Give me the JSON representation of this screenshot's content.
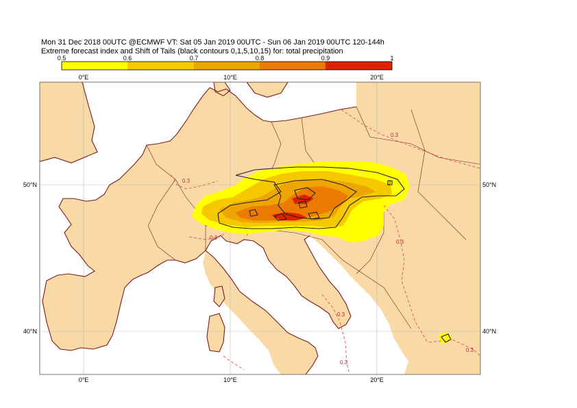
{
  "header": {
    "line1": "Mon 31 Dec 2018 00UTC @ECMWF VT: Sat 05 Jan 2019 00UTC - Sun 06 Jan 2019 00UTC  120-144h",
    "line2": "Extreme forecast index and Shift of Tails (black contours 0,1,5,10,15) for: total precipitation"
  },
  "colorbar": {
    "labels": [
      "0.5",
      "0.6",
      "0.7",
      "0.8",
      "0.9",
      "1"
    ],
    "colors": [
      "#ffff00",
      "#f5c800",
      "#eea500",
      "#ea7a00",
      "#e02000"
    ]
  },
  "map": {
    "colors": {
      "land": "#f9d9a6",
      "sea": "#ffffff",
      "coast": "#7a1b1b",
      "grid": "#bbbbbb",
      "sot_dash": "#e05050"
    },
    "lon_ticks": [
      "0°E",
      "10°E",
      "20°E"
    ],
    "lat_ticks": [
      "50°N",
      "40°N"
    ],
    "sot_labels": [
      "0.3",
      "0.3",
      "0.3",
      "0.3",
      "0.3",
      "0.3",
      "0.3"
    ],
    "contour_labels": [
      "0"
    ]
  }
}
